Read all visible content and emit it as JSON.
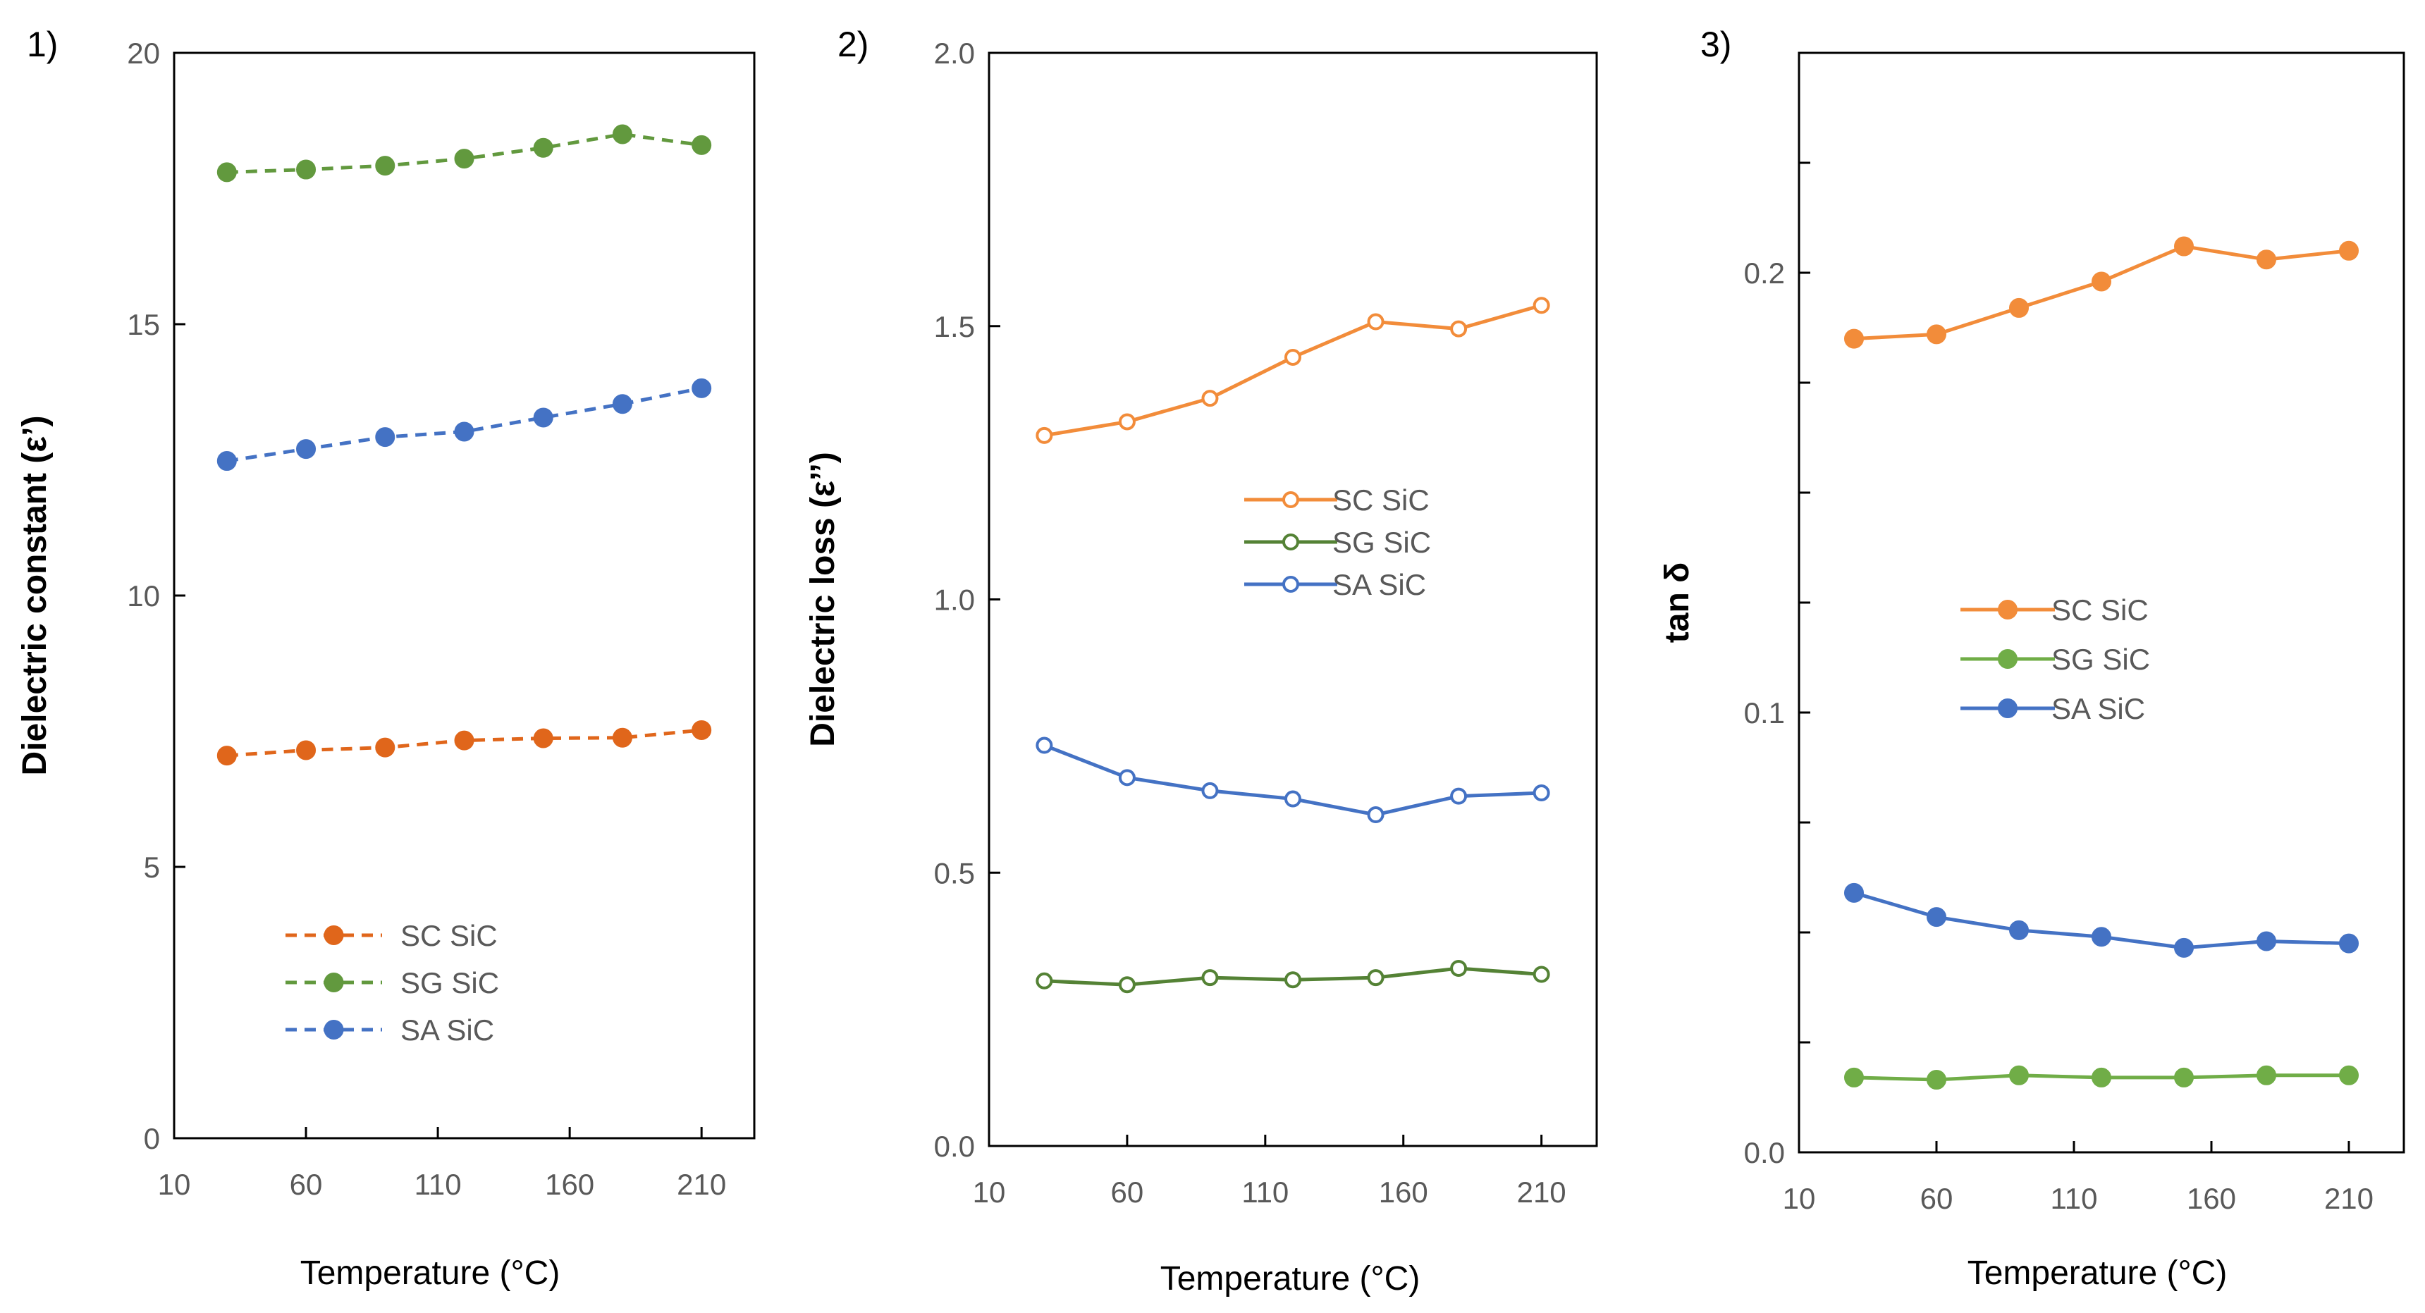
{
  "chart_data": [
    {
      "type": "line",
      "panel_label": "1)",
      "title": "",
      "xlabel": "Temperature (°C)",
      "ylabel": "Dielectric constant (ε’)",
      "xlim": [
        10,
        230
      ],
      "ylim": [
        0,
        20
      ],
      "xticks": [
        10,
        60,
        110,
        160,
        210
      ],
      "xtick_labels": [
        "10",
        "60",
        "110",
        "160",
        "210"
      ],
      "yticks": [
        0,
        5,
        10,
        15,
        20
      ],
      "ytick_labels": [
        "0",
        "5",
        "10",
        "15",
        "20"
      ],
      "marker": "filled",
      "line_style": "dashed",
      "legend": {
        "position": "bottom-center"
      },
      "x": [
        30,
        60,
        90,
        120,
        150,
        180,
        210
      ],
      "series": [
        {
          "name": "SC SiC",
          "color": "#E0661B",
          "values": [
            7.05,
            7.15,
            7.2,
            7.33,
            7.37,
            7.38,
            7.52
          ]
        },
        {
          "name": "SG SiC",
          "color": "#62993E",
          "values": [
            17.8,
            17.85,
            17.92,
            18.05,
            18.25,
            18.5,
            18.3
          ]
        },
        {
          "name": "SA SiC",
          "color": "#4472C4",
          "values": [
            12.48,
            12.7,
            12.92,
            13.02,
            13.28,
            13.53,
            13.82
          ]
        }
      ]
    },
    {
      "type": "line",
      "panel_label": "2)",
      "title": "",
      "xlabel": "Temperature (°C)",
      "ylabel": "Dielectric loss (ε’’)",
      "xlim": [
        10,
        230
      ],
      "ylim": [
        0,
        2
      ],
      "xticks": [
        10,
        60,
        110,
        160,
        210
      ],
      "xtick_labels": [
        "10",
        "60",
        "110",
        "160",
        "210"
      ],
      "yticks": [
        0,
        0.5,
        1,
        1.5,
        2
      ],
      "ytick_labels": [
        "0.0",
        "0.5",
        "1.0",
        "1.5",
        "2.0"
      ],
      "marker": "hollow",
      "line_style": "solid",
      "legend": {
        "position": "middle-center"
      },
      "x": [
        30,
        60,
        90,
        120,
        150,
        180,
        210
      ],
      "series": [
        {
          "name": "SC SiC",
          "color": "#F28C3A",
          "values": [
            1.3,
            1.325,
            1.368,
            1.443,
            1.508,
            1.495,
            1.538
          ]
        },
        {
          "name": "SG SiC",
          "color": "#548235",
          "values": [
            0.302,
            0.295,
            0.308,
            0.304,
            0.308,
            0.325,
            0.314
          ]
        },
        {
          "name": "SA SiC",
          "color": "#4472C4",
          "values": [
            0.733,
            0.674,
            0.65,
            0.635,
            0.606,
            0.64,
            0.646
          ]
        }
      ]
    },
    {
      "type": "line",
      "panel_label": "3)",
      "title": "",
      "xlabel": "Temperature (°C)",
      "ylabel": "tan δ",
      "xlim": [
        10,
        230
      ],
      "ylim": [
        0,
        0.25
      ],
      "xticks": [
        10,
        60,
        110,
        160,
        210
      ],
      "xtick_labels": [
        "10",
        "60",
        "110",
        "160",
        "210"
      ],
      "yticks": [
        0,
        0.1,
        0.2
      ],
      "ytick_labels": [
        "0.0",
        "0.1",
        "0.2"
      ],
      "minor_yticks": [
        0.025,
        0.05,
        0.075,
        0.125,
        0.15,
        0.175,
        0.225
      ],
      "marker": "filled",
      "line_style": "solid",
      "legend": {
        "position": "middle-center"
      },
      "x": [
        30,
        60,
        90,
        120,
        150,
        180,
        210
      ],
      "series": [
        {
          "name": "SC SiC",
          "color": "#F28C3A",
          "values": [
            0.185,
            0.186,
            0.192,
            0.198,
            0.206,
            0.203,
            0.205
          ]
        },
        {
          "name": "SG SiC",
          "color": "#70AD47",
          "values": [
            0.017,
            0.0165,
            0.0175,
            0.017,
            0.017,
            0.0175,
            0.0175
          ]
        },
        {
          "name": "SA SiC",
          "color": "#4472C4",
          "values": [
            0.059,
            0.0535,
            0.0505,
            0.049,
            0.0465,
            0.048,
            0.0475
          ]
        }
      ]
    }
  ]
}
